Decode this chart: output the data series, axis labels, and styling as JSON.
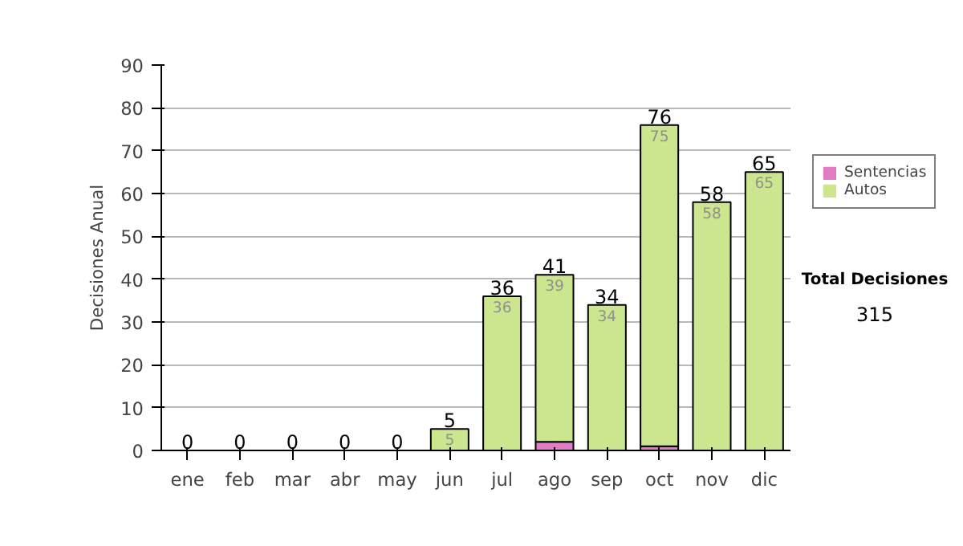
{
  "chart_data": {
    "type": "bar",
    "stacked": true,
    "ylabel": "Decisiones Anual",
    "categories": [
      "ene",
      "feb",
      "mar",
      "abr",
      "may",
      "jun",
      "jul",
      "ago",
      "sep",
      "oct",
      "nov",
      "dic"
    ],
    "series": [
      {
        "name": "Sentencias",
        "color": "#e07cc4",
        "values": [
          0,
          0,
          0,
          0,
          0,
          0,
          0,
          2,
          0,
          1,
          0,
          0
        ]
      },
      {
        "name": "Autos",
        "color": "#cce690",
        "values": [
          0,
          0,
          0,
          0,
          0,
          5,
          36,
          39,
          34,
          75,
          58,
          65
        ],
        "value_labels": [
          null,
          null,
          null,
          null,
          null,
          "5",
          "36",
          "39",
          "34",
          "75",
          "58",
          "65"
        ]
      }
    ],
    "totals": [
      "0",
      "0",
      "0",
      "0",
      "0",
      "5",
      "36",
      "41",
      "34",
      "76",
      "58",
      "65"
    ],
    "ylim": [
      0,
      90
    ],
    "yticks": [
      0,
      10,
      20,
      30,
      40,
      50,
      60,
      70,
      80,
      90
    ],
    "grid": "y",
    "legend": "top right",
    "annotations": [
      "Total Decisiones",
      "315"
    ]
  }
}
